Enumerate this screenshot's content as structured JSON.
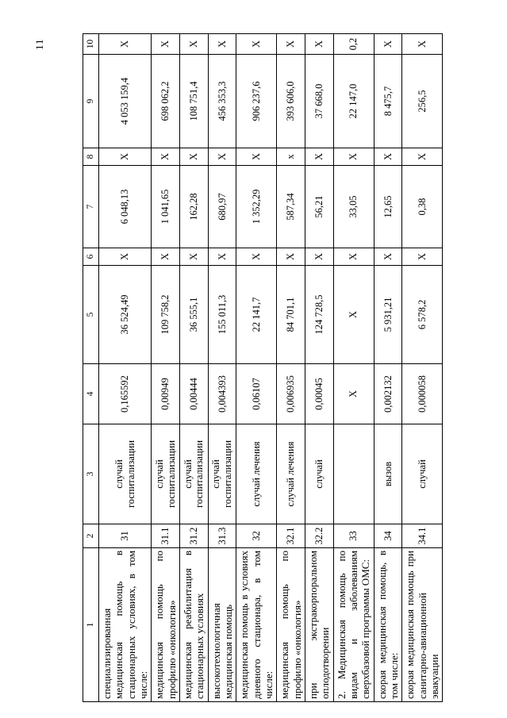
{
  "page": {
    "number": "11"
  },
  "table": {
    "headers": [
      "1",
      "2",
      "3",
      "4",
      "5",
      "6",
      "7",
      "8",
      "9",
      "10"
    ],
    "rows": [
      [
        "специализированная медицинская помощь в стационарных условиях, в том числе:",
        "31",
        "случай госпитализации",
        "0,165592",
        "36 524,49",
        "X",
        "6 048,13",
        "X",
        "4 053 159,4",
        "X"
      ],
      [
        "медицинская помощь по профилю «онкология»",
        "31.1",
        "случай госпитализации",
        "0,00949",
        "109 758,2",
        "X",
        "1 041,65",
        "X",
        "698 062,2",
        "X"
      ],
      [
        "медицинская реабилитация в стационарных условиях",
        "31.2",
        "случай госпитализации",
        "0,00444",
        "36 555,1",
        "X",
        "162,28",
        "X",
        "108 751,4",
        "X"
      ],
      [
        "высокотехнологичная медицинская помощь",
        "31.3",
        "случай госпитализации",
        "0,004393",
        "155 011,3",
        "X",
        "680,97",
        "X",
        "456 353,3",
        "X"
      ],
      [
        "медицинская помощь в условиях дневного стационара, в том числе:",
        "32",
        "случай лечения",
        "0,06107",
        "22 141,7",
        "X",
        "1 352,29",
        "X",
        "906 237,6",
        "X"
      ],
      [
        "медицинская помощь по профилю «онкология»",
        "32.1",
        "случай лечения",
        "0,006935",
        "84 701,1",
        "X",
        "587,34",
        "x",
        "393 606,0",
        "X"
      ],
      [
        "при экстракорпоральном оплодотворении",
        "32.2",
        "случай",
        "0,00045",
        "124 728,5",
        "X",
        "56,21",
        "X",
        "37 668,0",
        "X"
      ],
      [
        "2. Медицинская помощь по видам и заболеваниям сверхбазовой программы ОМС:",
        "33",
        "",
        "X",
        "X",
        "X",
        "33,05",
        "X",
        "22 147,0",
        "0,2"
      ],
      [
        "скорая медицинская помощь, в том числе:",
        "34",
        "вызов",
        "0,002132",
        "5 931,21",
        "X",
        "12,65",
        "X",
        "8 475,7",
        "X"
      ],
      [
        "скорая медицинская помощь при санитарно-авиационной эвакуации",
        "34.1",
        "случай",
        "0,000058",
        "6 578,2",
        "X",
        "0,38",
        "X",
        "256,5",
        "X"
      ]
    ]
  }
}
